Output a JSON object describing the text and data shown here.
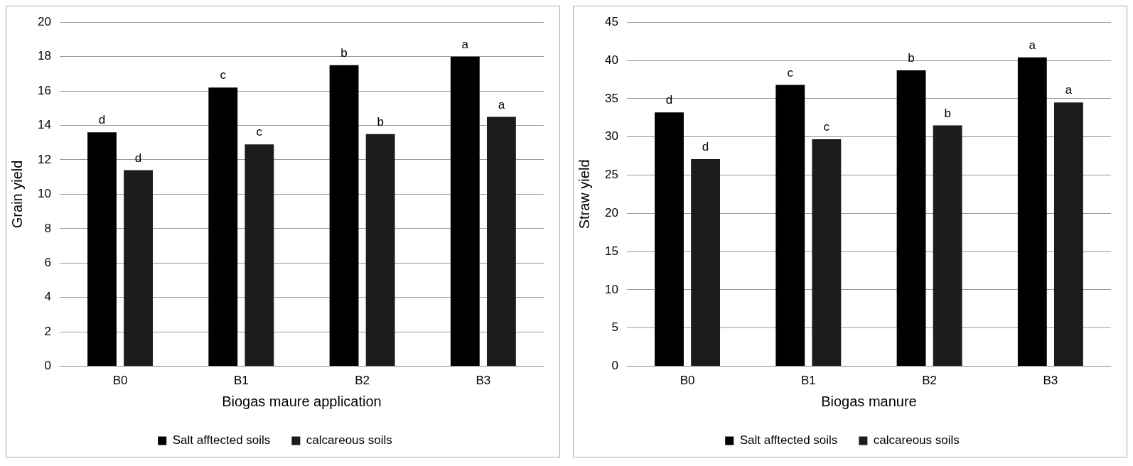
{
  "chart_data": [
    {
      "type": "bar",
      "xlabel": "Biogas maure application",
      "ylabel": "Grain yield",
      "categories": [
        "B0",
        "B1",
        "B2",
        "B3"
      ],
      "ylim": [
        0,
        20
      ],
      "yticks": [
        0,
        2,
        4,
        6,
        8,
        10,
        12,
        14,
        16,
        18,
        20
      ],
      "grid": "y",
      "legend": "bottom",
      "series": [
        {
          "name": "Salt afftected soils",
          "color": "#000000",
          "values": [
            13.6,
            16.2,
            17.5,
            18.0
          ],
          "value_labels": [
            "d",
            "c",
            "b",
            "a"
          ]
        },
        {
          "name": "calcareous soils",
          "color": "#1c1c1c",
          "values": [
            11.4,
            12.9,
            13.5,
            14.5
          ],
          "value_labels": [
            "d",
            "c",
            "b",
            "a"
          ]
        }
      ]
    },
    {
      "type": "bar",
      "xlabel": "Biogas manure",
      "ylabel": "Straw yield",
      "categories": [
        "B0",
        "B1",
        "B2",
        "B3"
      ],
      "ylim": [
        0,
        45
      ],
      "yticks": [
        0,
        5,
        10,
        15,
        20,
        25,
        30,
        35,
        40,
        45
      ],
      "grid": "y",
      "legend": "bottom",
      "series": [
        {
          "name": "Salt afftected soils",
          "color": "#000000",
          "values": [
            33.2,
            36.8,
            38.7,
            40.4
          ],
          "value_labels": [
            "d",
            "c",
            "b",
            "a"
          ]
        },
        {
          "name": "calcareous soils",
          "color": "#1c1c1c",
          "values": [
            27.1,
            29.7,
            31.5,
            34.5
          ],
          "value_labels": [
            "d",
            "c",
            "b",
            "a"
          ]
        }
      ]
    }
  ]
}
